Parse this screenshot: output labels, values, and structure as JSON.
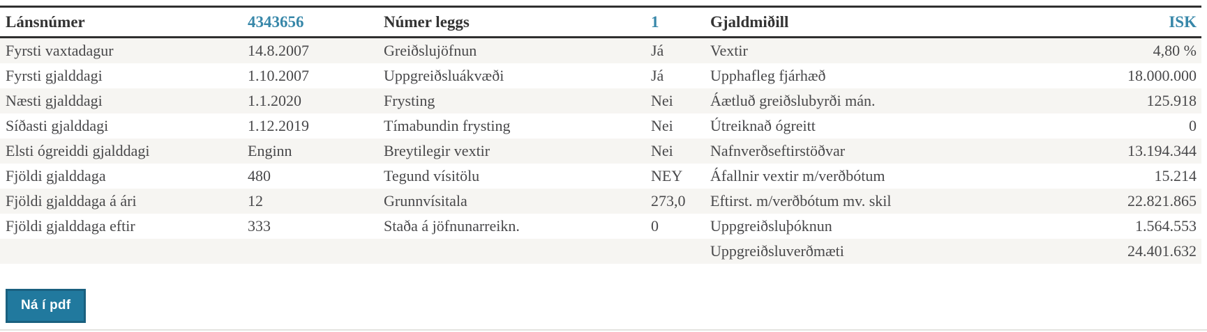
{
  "accent_color": "#3787a9",
  "table": {
    "header": {
      "col1_label": "Lánsnúmer",
      "col1_value": "4343656",
      "col2_label": "Númer leggs",
      "col2_value": "1",
      "col3_label": "Gjaldmiðill",
      "col3_value": "ISK"
    },
    "rows": [
      {
        "col1_label": "Fyrsti vaxtadagur",
        "col1_value": "14.8.2007",
        "col2_label": "Greiðslujöfnun",
        "col2_value": "Já",
        "col3_label": "Vextir",
        "col3_value": "4,80 %"
      },
      {
        "col1_label": "Fyrsti gjalddagi",
        "col1_value": "1.10.2007",
        "col2_label": "Uppgreiðsluákvæði",
        "col2_value": "Já",
        "col3_label": "Upphafleg fjárhæð",
        "col3_value": "18.000.000"
      },
      {
        "col1_label": "Næsti gjalddagi",
        "col1_value": "1.1.2020",
        "col2_label": "Frysting",
        "col2_value": "Nei",
        "col3_label": "Áætluð greiðslubyrði mán.",
        "col3_value": "125.918"
      },
      {
        "col1_label": "Síðasti gjalddagi",
        "col1_value": "1.12.2019",
        "col2_label": "Tímabundin frysting",
        "col2_value": "Nei",
        "col3_label": "Útreiknað ógreitt",
        "col3_value": "0"
      },
      {
        "col1_label": "Elsti ógreiddi gjalddagi",
        "col1_value": "Enginn",
        "col2_label": "Breytilegir vextir",
        "col2_value": "Nei",
        "col3_label": "Nafnverðseftirstöðvar",
        "col3_value": "13.194.344"
      },
      {
        "col1_label": "Fjöldi gjalddaga",
        "col1_value": "480",
        "col2_label": "Tegund vísitölu",
        "col2_value": "NEY",
        "col3_label": "Áfallnir vextir m/verðbótum",
        "col3_value": "15.214"
      },
      {
        "col1_label": "Fjöldi gjalddaga á ári",
        "col1_value": "12",
        "col2_label": "Grunnvísitala",
        "col2_value": "273,0",
        "col3_label": "Eftirst. m/verðbótum mv. skil",
        "col3_value": "22.821.865"
      },
      {
        "col1_label": "Fjöldi gjalddaga eftir",
        "col1_value": "333",
        "col2_label": "Staða á jöfnunarreikn.",
        "col2_value": "0",
        "col3_label": "Uppgreiðsluþóknun",
        "col3_value": "1.564.553"
      },
      {
        "col1_label": "",
        "col1_value": "",
        "col2_label": "",
        "col2_value": "",
        "col3_label": "Uppgreiðsluverðmæti",
        "col3_value": "24.401.632"
      }
    ]
  },
  "button": {
    "label": "Ná í pdf"
  }
}
